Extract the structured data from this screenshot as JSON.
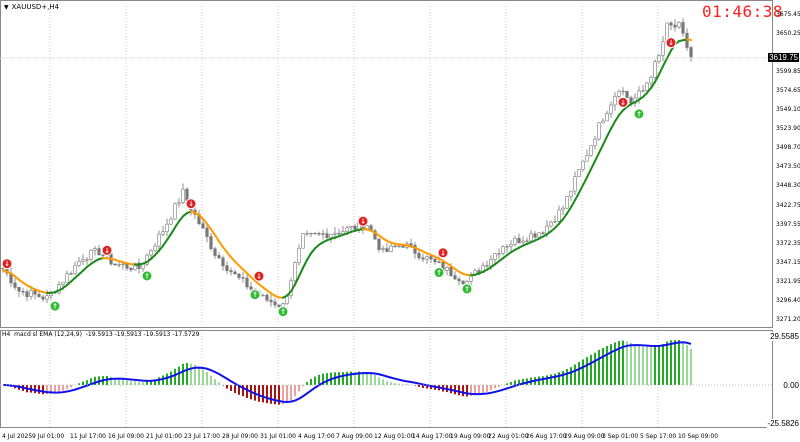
{
  "header": {
    "symbol": "XAUUSD+,H4",
    "clock": "01:46:38"
  },
  "indicator": {
    "label": "H4  macd sl EMA (12,24,9)  -19.5913 -19.5913 -19.5913 -17.5729"
  },
  "price_axis": {
    "ticks": [
      "3675.45",
      "3650.25",
      "3599.85",
      "3574.65",
      "3549.10",
      "3523.90",
      "3498.70",
      "3473.50",
      "3448.30",
      "3422.75",
      "3397.55",
      "3372.35",
      "3347.15",
      "3321.95",
      "3296.40",
      "3271.20"
    ],
    "current": "3619.75"
  },
  "indicator_axis": {
    "ticks": [
      "29.5585",
      "0.00",
      "-25.5826"
    ]
  },
  "time_axis": {
    "ticks": [
      "4 Jul 2025",
      "9 Jul 01:00",
      "11 Jul 17:00",
      "16 Jul 09:00",
      "21 Jul 01:00",
      "23 Jul 17:00",
      "28 Jul 09:00",
      "31 Jul 01:00",
      "4 Aug 17:00",
      "7 Aug 09:00",
      "12 Aug 01:00",
      "14 Aug 17:00",
      "19 Aug 09:00",
      "22 Aug 01:00",
      "26 Aug 17:00",
      "29 Aug 09:00",
      "3 Sep 01:00",
      "5 Sep 17:00",
      "10 Sep 09:00"
    ]
  },
  "colors": {
    "bull_ma": "#1a8a1a",
    "bear_ma": "#ff9900",
    "hist_up": "#22aa22",
    "hist_down": "#aa1111",
    "signal": "#1111ee",
    "sell": "#e02020",
    "buy": "#33bb33",
    "clock": "#ff2020"
  },
  "chart_data": {
    "type": "candlestick",
    "symbol": "XAUUSD+",
    "timeframe": "H4",
    "ylim": [
      3271.2,
      3675.45
    ],
    "close_keypoints": [
      [
        0,
        3340
      ],
      [
        4,
        3310
      ],
      [
        11,
        3300
      ],
      [
        20,
        3355
      ],
      [
        24,
        3362
      ],
      [
        28,
        3345
      ],
      [
        34,
        3340
      ],
      [
        40,
        3390
      ],
      [
        45,
        3440
      ],
      [
        48,
        3410
      ],
      [
        53,
        3360
      ],
      [
        58,
        3330
      ],
      [
        65,
        3300
      ],
      [
        70,
        3290
      ],
      [
        75,
        3380
      ],
      [
        85,
        3390
      ],
      [
        91,
        3398
      ],
      [
        95,
        3360
      ],
      [
        100,
        3372
      ],
      [
        110,
        3340
      ],
      [
        116,
        3322
      ],
      [
        125,
        3370
      ],
      [
        135,
        3390
      ],
      [
        140,
        3420
      ],
      [
        145,
        3480
      ],
      [
        150,
        3540
      ],
      [
        154,
        3580
      ],
      [
        157,
        3560
      ],
      [
        160,
        3575
      ],
      [
        164,
        3620
      ],
      [
        166,
        3660
      ],
      [
        169,
        3660
      ],
      [
        172,
        3620
      ]
    ],
    "signals": [
      {
        "bar": 1,
        "type": "sell"
      },
      {
        "bar": 26,
        "type": "sell"
      },
      {
        "bar": 47,
        "type": "sell"
      },
      {
        "bar": 64,
        "type": "sell"
      },
      {
        "bar": 90,
        "type": "sell"
      },
      {
        "bar": 110,
        "type": "sell"
      },
      {
        "bar": 155,
        "type": "sell"
      },
      {
        "bar": 167,
        "type": "sell"
      },
      {
        "bar": 13,
        "type": "buy"
      },
      {
        "bar": 36,
        "type": "buy"
      },
      {
        "bar": 63,
        "type": "buy"
      },
      {
        "bar": 70,
        "type": "buy"
      },
      {
        "bar": 109,
        "type": "buy"
      },
      {
        "bar": 116,
        "type": "buy"
      },
      {
        "bar": 159,
        "type": "buy"
      }
    ],
    "indicator": {
      "name": "macd sl EMA",
      "params": [
        12,
        24,
        9
      ],
      "ylim": [
        -25.5826,
        29.5585
      ]
    }
  }
}
